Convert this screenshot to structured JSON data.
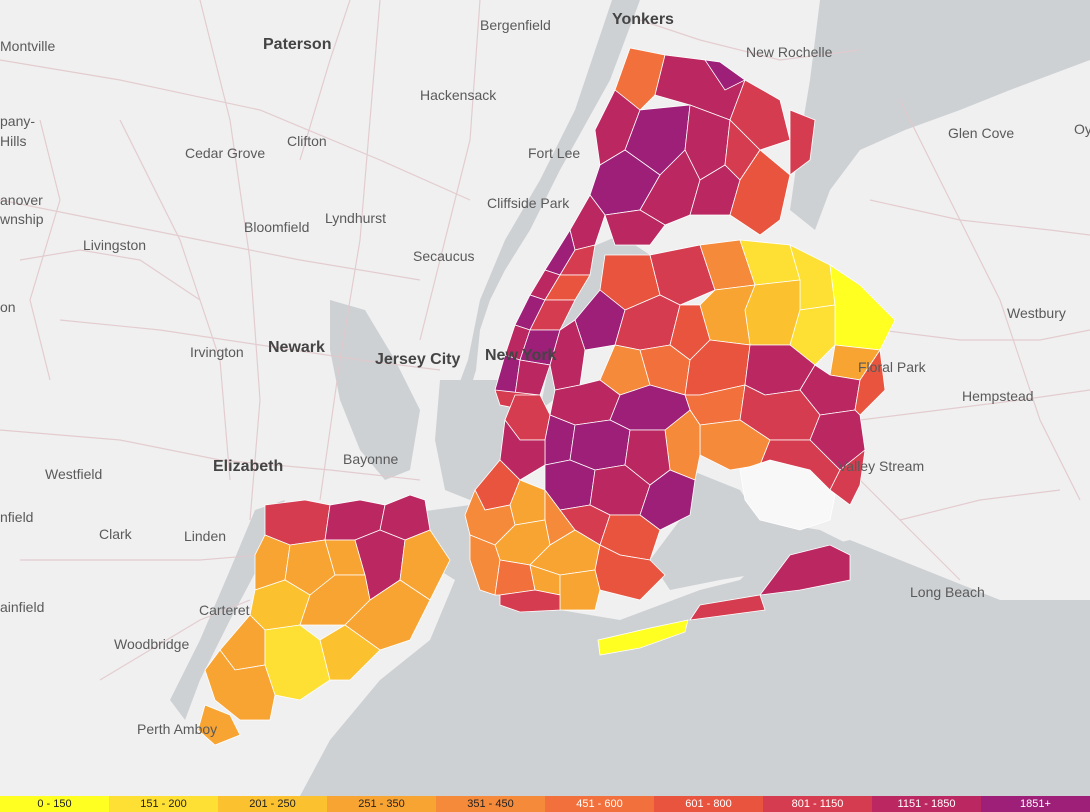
{
  "map": {
    "place_labels": {
      "yonkers": "Yonkers",
      "paterson": "Paterson",
      "bergenfield": "Bergenfield",
      "new_rochelle": "New Rochelle",
      "montville": "Montville",
      "hackensack": "Hackensack",
      "glen_cove": "Glen Cove",
      "oy": "Oy",
      "cedar_grove": "Cedar Grove",
      "clifton": "Clifton",
      "fort_lee": "Fort Lee",
      "parsippany": "pany-",
      "hills": "Hills",
      "cliffside_park": "Cliffside Park",
      "hanover": "anover",
      "township": "wnship",
      "lyndhurst": "Lyndhurst",
      "bloomfield": "Bloomfield",
      "livingston": "Livingston",
      "secaucus": "Secaucus",
      "westbury": "Westbury",
      "on": "on",
      "irvington": "Irvington",
      "newark": "Newark",
      "jersey_city": "Jersey City",
      "new_york": "New York",
      "floral_park": "Floral Park",
      "hempstead": "Hempstead",
      "westfield": "Westfield",
      "elizabeth": "Elizabeth",
      "bayonne": "Bayonne",
      "valley_stream": "Valley Stream",
      "cranford": "nfield",
      "clark": "Clark",
      "linden": "Linden",
      "plainfield": "ainfield",
      "carteret": "Carteret",
      "long_beach": "Long Beach",
      "woodbridge": "Woodbridge",
      "perth_amboy": "Perth Amboy"
    }
  },
  "legend": [
    {
      "label": "0 - 150",
      "color": "#ffff22"
    },
    {
      "label": "151 - 200",
      "color": "#fde033"
    },
    {
      "label": "201 - 250",
      "color": "#fbc12e"
    },
    {
      "label": "251 - 350",
      "color": "#f8a432"
    },
    {
      "label": "351 - 450",
      "color": "#f58a3a"
    },
    {
      "label": "451 - 600",
      "color": "#f1703c"
    },
    {
      "label": "601 - 800",
      "color": "#e9543f"
    },
    {
      "label": "801 - 1150",
      "color": "#d63c4f"
    },
    {
      "label": "1151 - 1850",
      "color": "#bb2760"
    },
    {
      "label": "1851+",
      "color": "#9d1f78"
    }
  ]
}
